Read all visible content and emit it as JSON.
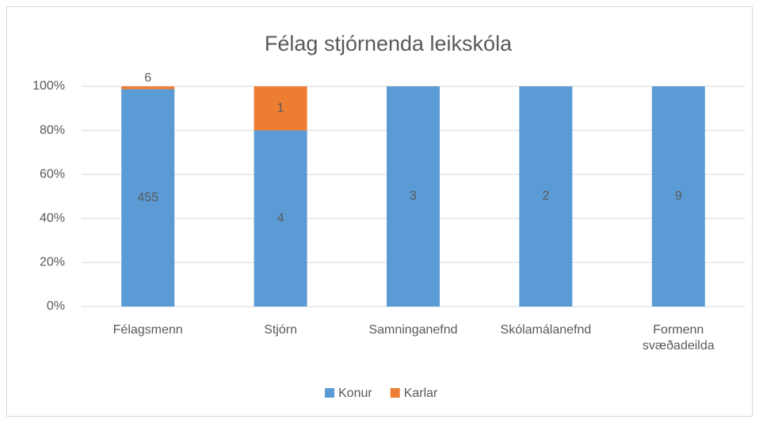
{
  "chart_data": {
    "type": "bar",
    "stacking": "percent",
    "title": "Félag stjórnenda leikskóla",
    "categories": [
      "Félagsmenn",
      "Stjórn",
      "Samninganefnd",
      "Skólamálanefnd",
      "Formenn svæðadeilda"
    ],
    "series": [
      {
        "name": "Konur",
        "color": "#5b9bd5",
        "values": [
          455,
          4,
          3,
          2,
          9
        ]
      },
      {
        "name": "Karlar",
        "color": "#ed7d31",
        "values": [
          6,
          1,
          null,
          null,
          null
        ]
      }
    ],
    "ylim": [
      0,
      100
    ],
    "yticks": [
      {
        "value": 0,
        "label": "0%"
      },
      {
        "value": 20,
        "label": "20%"
      },
      {
        "value": 40,
        "label": "40%"
      },
      {
        "value": 60,
        "label": "60%"
      },
      {
        "value": 80,
        "label": "80%"
      },
      {
        "value": 100,
        "label": "100%"
      }
    ],
    "grid": true,
    "legend": "bottom"
  }
}
